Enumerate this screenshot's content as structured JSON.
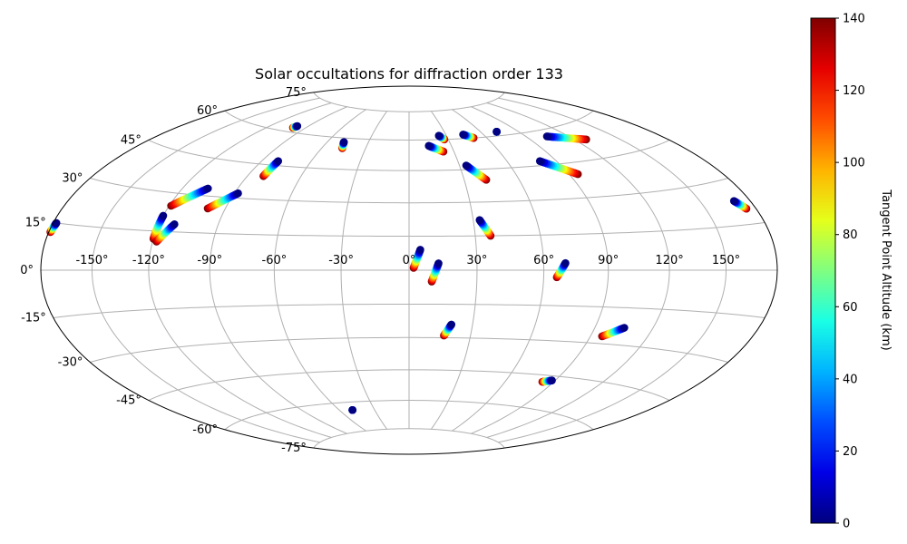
{
  "chart_data": {
    "type": "scatter",
    "projection": "hammer",
    "title": "Solar occultations for diffraction order 133",
    "xlabel": "",
    "ylabel": "",
    "grid": true,
    "x_ticks": [
      "-150°",
      "-120°",
      "-90°",
      "-60°",
      "-30°",
      "0°",
      "30°",
      "60°",
      "90°",
      "120°",
      "150°"
    ],
    "x_tick_values": [
      -150,
      -120,
      -90,
      -60,
      -30,
      0,
      30,
      60,
      90,
      120,
      150
    ],
    "y_ticks": [
      "-75°",
      "-60°",
      "-45°",
      "-30°",
      "-15°",
      "0°",
      "15°",
      "30°",
      "45°",
      "60°",
      "75°"
    ],
    "y_tick_values": [
      -75,
      -60,
      -45,
      -30,
      -15,
      0,
      15,
      30,
      45,
      60,
      75
    ],
    "colorbar": {
      "label": "Tangent Point Altitude (km)",
      "range": [
        0,
        140
      ],
      "ticks": [
        "0",
        "20",
        "40",
        "60",
        "80",
        "100",
        "120",
        "140"
      ],
      "tick_values": [
        0,
        20,
        40,
        60,
        80,
        100,
        120,
        140
      ],
      "colormap": "jet"
    },
    "tracks": [
      {
        "start": [
          -178,
          15
        ],
        "end": [
          -179,
          12
        ]
      },
      {
        "start": [
          -120,
          21
        ],
        "end": [
          -120,
          12
        ]
      },
      {
        "start": [
          -112,
          18
        ],
        "end": [
          -118,
          11
        ]
      },
      {
        "start": [
          -106,
          33
        ],
        "end": [
          -119,
          25
        ]
      },
      {
        "start": [
          -88,
          32
        ],
        "end": [
          -99,
          25
        ]
      },
      {
        "start": [
          -80,
          47
        ],
        "end": [
          -81,
          40
        ]
      },
      {
        "start": [
          -99,
          63
        ],
        "end": [
          -100,
          62
        ]
      },
      {
        "start": [
          -48,
          58
        ],
        "end": [
          -46,
          55
        ]
      },
      {
        "start": [
          5,
          9
        ],
        "end": [
          2,
          1
        ]
      },
      {
        "start": [
          13,
          3
        ],
        "end": [
          10,
          -5
        ]
      },
      {
        "start": [
          20,
          -24
        ],
        "end": [
          17,
          -29
        ]
      },
      {
        "start": [
          14,
          57
        ],
        "end": [
          23,
          54
        ]
      },
      {
        "start": [
          24,
          62
        ],
        "end": [
          27,
          60
        ]
      },
      {
        "start": [
          34,
          47
        ],
        "end": [
          42,
          40
        ]
      },
      {
        "start": [
          44,
          62
        ],
        "end": [
          50,
          60
        ]
      },
      {
        "start": [
          33,
          22
        ],
        "end": [
          37,
          15
        ]
      },
      {
        "start": [
          73,
          62
        ],
        "end": [
          73,
          62
        ]
      },
      {
        "start": [
          70,
          3
        ],
        "end": [
          66,
          -3
        ]
      },
      {
        "start": [
          80,
          47
        ],
        "end": [
          95,
          40
        ]
      },
      {
        "start": [
          105,
          57
        ],
        "end": [
          128,
          53
        ]
      },
      {
        "start": [
          105,
          -23
        ],
        "end": [
          96,
          -27
        ]
      },
      {
        "start": [
          88,
          -47
        ],
        "end": [
          83,
          -48
        ]
      },
      {
        "start": [
          170,
          23
        ],
        "end": [
          174,
          20
        ]
      },
      {
        "start": [
          -49,
          -64
        ],
        "end": [
          -49,
          -64
        ]
      }
    ]
  }
}
